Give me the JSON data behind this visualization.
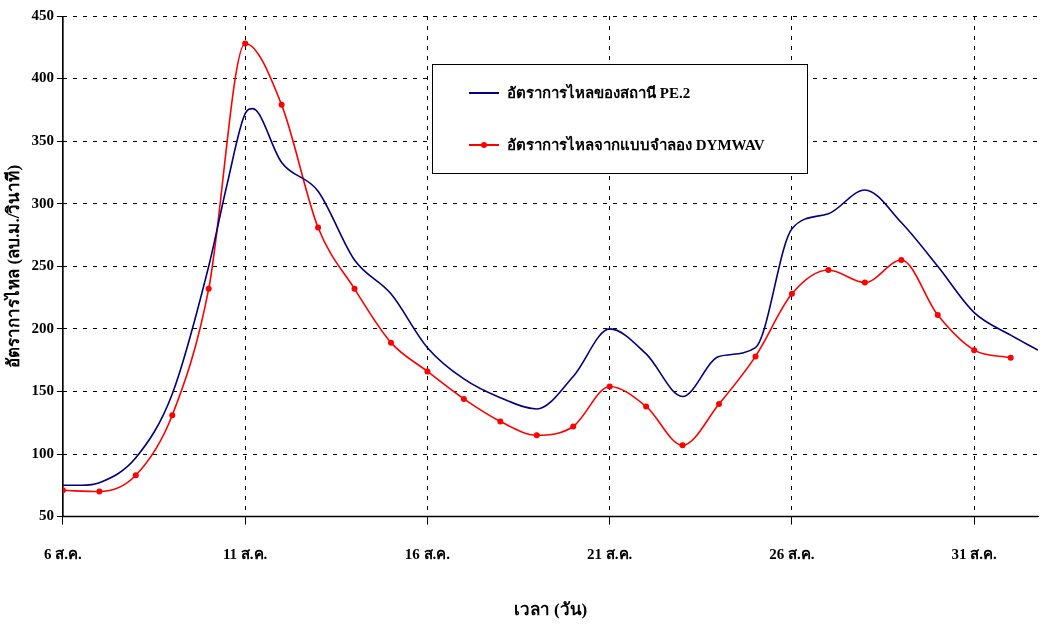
{
  "chart_data": {
    "type": "line",
    "xlabel": "เวลา (วัน)",
    "ylabel": "อัตราการไหล (ลบ.ม./วินาที)",
    "xlim": [
      6,
      32.75
    ],
    "xticks": [
      {
        "value": 6,
        "label": "6 ส.ค."
      },
      {
        "value": 11,
        "label": "11 ส.ค."
      },
      {
        "value": 16,
        "label": "16 ส.ค."
      },
      {
        "value": 21,
        "label": "21 ส.ค."
      },
      {
        "value": 26,
        "label": "26 ส.ค."
      },
      {
        "value": 31,
        "label": "31 ส.ค."
      }
    ],
    "ylim": [
      50,
      450
    ],
    "yticks": [
      50,
      100,
      150,
      200,
      250,
      300,
      350,
      400,
      450
    ],
    "grid": true,
    "legend": "top right",
    "series": [
      {
        "name": "อัตราการไหลของสถานี PE.2",
        "color": "#000080",
        "marker": "none",
        "x": [
          6,
          6.5,
          7,
          8,
          9,
          10,
          10.5,
          11,
          11.2,
          12,
          13,
          14,
          15,
          16,
          17,
          18,
          19,
          20,
          21,
          22,
          23,
          24,
          25,
          26,
          27,
          28,
          29,
          30,
          31,
          32,
          32.75
        ],
        "values": [
          75,
          75,
          77,
          97,
          148,
          250,
          315,
          372,
          376,
          333,
          310,
          255,
          228,
          185,
          160,
          145,
          136,
          162,
          200,
          180,
          146,
          178,
          185,
          280,
          292,
          311,
          285,
          250,
          213,
          195,
          183
        ]
      },
      {
        "name": "อัตราการไหลจากแบบจำลอง DYMWAV",
        "color": "#ff0000",
        "marker": "circle",
        "x": [
          6,
          7,
          8,
          9,
          10,
          11,
          12,
          13,
          14,
          15,
          16,
          17,
          18,
          19,
          20,
          21,
          22,
          23,
          24,
          25,
          26,
          27,
          28,
          29,
          30,
          31,
          32
        ],
        "values": [
          71,
          70,
          83,
          131,
          232,
          428,
          379,
          281,
          232,
          189,
          166,
          144,
          126,
          115,
          122,
          154,
          138,
          107,
          140,
          178,
          228,
          247,
          237,
          255,
          211,
          183,
          177
        ]
      }
    ]
  }
}
